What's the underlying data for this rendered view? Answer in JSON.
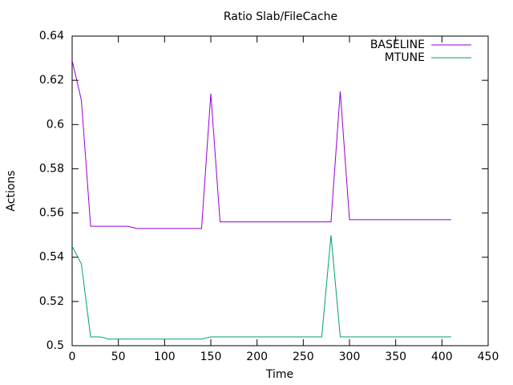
{
  "chart_data": {
    "type": "line",
    "title": "Ratio Slab/FileCache",
    "x_label": "Time",
    "y_label": "Actions",
    "x": [
      0,
      10,
      20,
      30,
      40,
      50,
      60,
      70,
      80,
      90,
      100,
      110,
      120,
      130,
      140,
      150,
      160,
      170,
      180,
      190,
      200,
      210,
      220,
      230,
      240,
      250,
      260,
      270,
      280,
      290,
      300,
      310,
      320,
      330,
      340,
      350,
      360,
      370,
      380,
      390,
      400,
      410
    ],
    "series": [
      {
        "name": "BASELINE",
        "color": "#9400d3",
        "values": [
          0.629,
          0.611,
          0.554,
          0.554,
          0.554,
          0.554,
          0.554,
          0.553,
          0.553,
          0.553,
          0.553,
          0.553,
          0.553,
          0.553,
          0.553,
          0.614,
          0.556,
          0.556,
          0.556,
          0.556,
          0.556,
          0.556,
          0.556,
          0.556,
          0.556,
          0.556,
          0.556,
          0.556,
          0.556,
          0.615,
          0.557,
          0.557,
          0.557,
          0.557,
          0.557,
          0.557,
          0.557,
          0.557,
          0.557,
          0.557,
          0.557,
          0.557
        ]
      },
      {
        "name": "MTUNE",
        "color": "#009e73",
        "values": [
          0.545,
          0.537,
          0.504,
          0.504,
          0.503,
          0.503,
          0.503,
          0.503,
          0.503,
          0.503,
          0.503,
          0.503,
          0.503,
          0.503,
          0.503,
          0.504,
          0.504,
          0.504,
          0.504,
          0.504,
          0.504,
          0.504,
          0.504,
          0.504,
          0.504,
          0.504,
          0.504,
          0.504,
          0.55,
          0.504,
          0.504,
          0.504,
          0.504,
          0.504,
          0.504,
          0.504,
          0.504,
          0.504,
          0.504,
          0.504,
          0.504,
          0.504
        ]
      }
    ],
    "xlim": [
      0,
      450
    ],
    "xticks": [
      0,
      50,
      100,
      150,
      200,
      250,
      300,
      350,
      400,
      450
    ],
    "ylim": [
      0.5,
      0.64
    ],
    "yticks": [
      0.5,
      0.52,
      0.54,
      0.56,
      0.58,
      0.6,
      0.62,
      0.64
    ],
    "legend": "top-right",
    "grid": false
  }
}
